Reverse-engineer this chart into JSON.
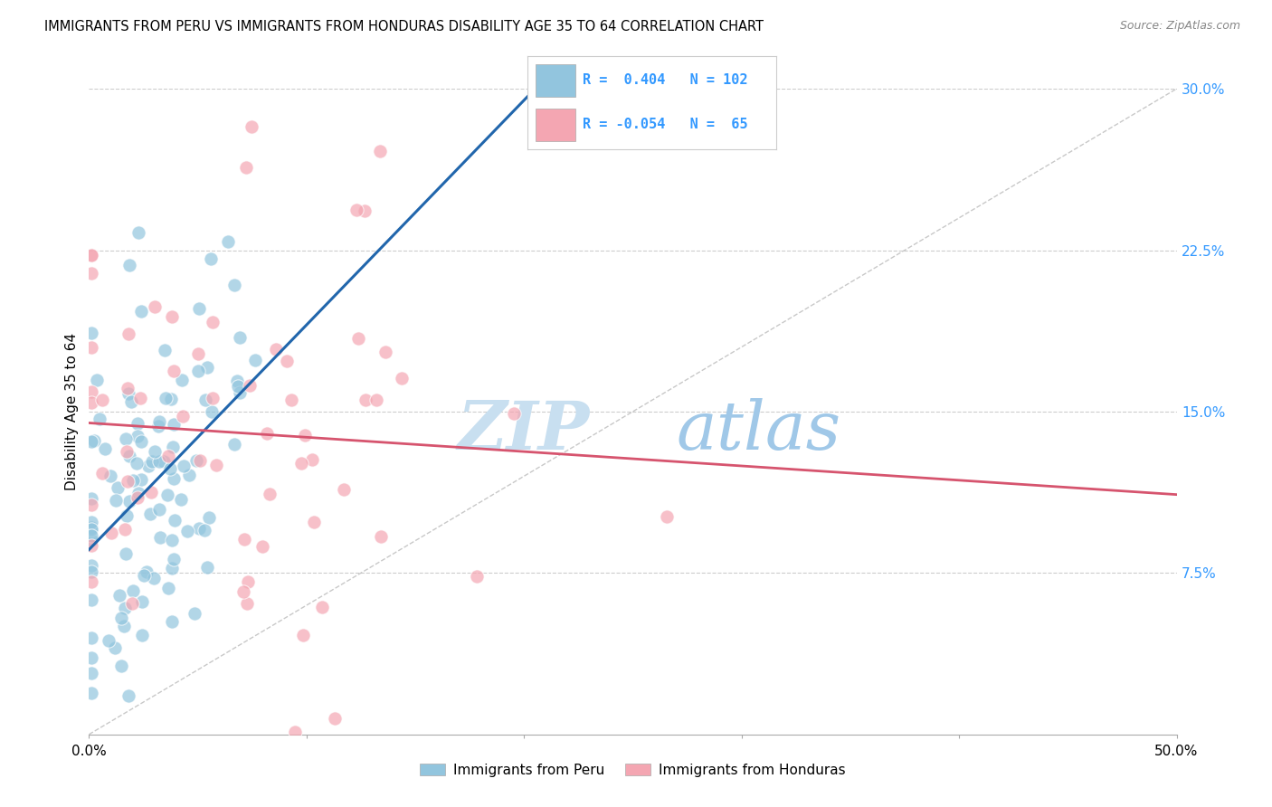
{
  "title": "IMMIGRANTS FROM PERU VS IMMIGRANTS FROM HONDURAS DISABILITY AGE 35 TO 64 CORRELATION CHART",
  "source": "Source: ZipAtlas.com",
  "ylabel": "Disability Age 35 to 64",
  "x_min": 0.0,
  "x_max": 0.5,
  "y_min": 0.0,
  "y_max": 0.3,
  "y_ticks_right": [
    0.075,
    0.15,
    0.225,
    0.3
  ],
  "y_tick_labels_right": [
    "7.5%",
    "15.0%",
    "22.5%",
    "30.0%"
  ],
  "legend_peru_R": "0.404",
  "legend_peru_N": "102",
  "legend_honduras_R": "-0.054",
  "legend_honduras_N": "65",
  "color_peru": "#92c5de",
  "color_honduras": "#f4a6b2",
  "color_line_peru": "#2166ac",
  "color_line_honduras": "#d6546e",
  "color_diagonal": "#bbbbbb",
  "watermark_zip": "ZIP",
  "watermark_atlas": "atlas",
  "background_color": "#ffffff",
  "grid_color": "#cccccc",
  "legend_text_color": "#3399ff",
  "legend_text_color2": "#cc3366"
}
